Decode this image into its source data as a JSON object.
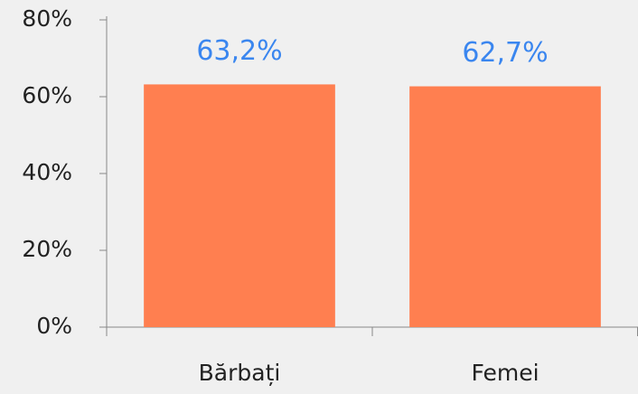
{
  "chart_data": {
    "type": "bar",
    "categories": [
      "Bărbați",
      "Femei"
    ],
    "values": [
      63.2,
      62.7
    ],
    "value_labels": [
      "63,2%",
      "62,7%"
    ],
    "color": "#ff7f50",
    "ylim": [
      0,
      80
    ],
    "yticks": [
      {
        "value": 0,
        "label": "0%"
      },
      {
        "value": 20,
        "label": "20%"
      },
      {
        "value": 40,
        "label": "40%"
      },
      {
        "value": 60,
        "label": "60%"
      },
      {
        "value": 80,
        "label": "80%"
      }
    ],
    "grid": false
  }
}
